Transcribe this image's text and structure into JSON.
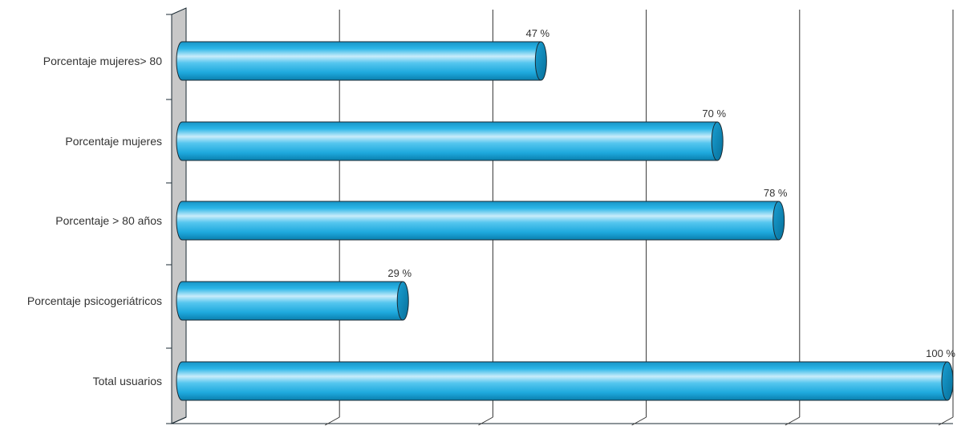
{
  "chart_data": {
    "type": "bar",
    "orientation": "horizontal",
    "style": "3d-cylinder",
    "categories": [
      "Porcentaje mujeres> 80",
      "Porcentaje mujeres",
      "Porcentaje > 80 años",
      "Porcentaje psicogeriátricos",
      "Total usuarios"
    ],
    "values": [
      47,
      70,
      78,
      29,
      100
    ],
    "data_labels": [
      "47 %",
      "70 %",
      "78 %",
      "29 %",
      "100 %"
    ],
    "xlim": [
      0,
      100
    ],
    "x_gridlines": [
      20,
      40,
      60,
      80,
      100
    ],
    "grid": true,
    "legend": "none",
    "colors": {
      "bar": "#1ea9dd",
      "bar_light": "#c8ecfa",
      "bar_dark": "#0a7fae",
      "cap": "#0e8cc0",
      "outline": "#1a2a33",
      "grid": "#333333",
      "wall": "#c8c8c8"
    }
  }
}
